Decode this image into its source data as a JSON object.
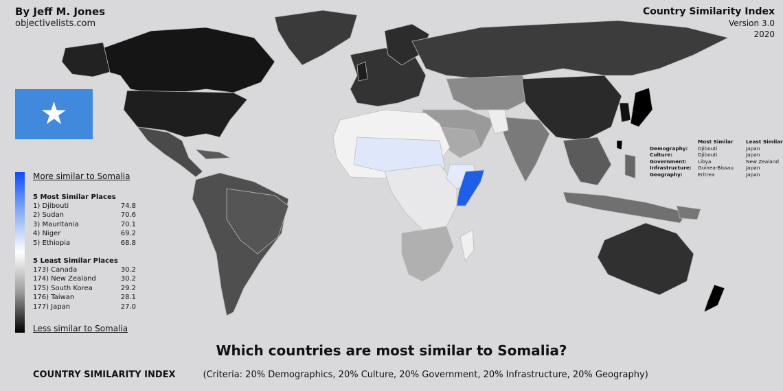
{
  "author": "By Jeff M. Jones",
  "website": "objectivelists.com",
  "index": {
    "title": "Country Similarity Index",
    "version": "Version 3.0",
    "year": "2020"
  },
  "legend": {
    "more_similar": "More similar to Somalia",
    "less_similar": "Less similar to Somalia",
    "top_colour": "#0a4cff",
    "bottom_colour": "#000000"
  },
  "most_similar": {
    "header": "5 Most Similar Places",
    "items": [
      {
        "rank": "1) Djibouti",
        "score": "74.8"
      },
      {
        "rank": "2) Sudan",
        "score": "70.6"
      },
      {
        "rank": "3) Mauritania",
        "score": "70.1"
      },
      {
        "rank": "4) Niger",
        "score": "69.2"
      },
      {
        "rank": "5) Ethiopia",
        "score": "68.8"
      }
    ]
  },
  "least_similar": {
    "header": "5 Least Similar Places",
    "items": [
      {
        "rank": "173) Canada",
        "score": "30.2"
      },
      {
        "rank": "174) New Zealand",
        "score": "30.2"
      },
      {
        "rank": "175) South Korea",
        "score": "29.2"
      },
      {
        "rank": "176) Taiwan",
        "score": "28.1"
      },
      {
        "rank": "177) Japan",
        "score": "27.0"
      }
    ]
  },
  "criteria_table": {
    "col_most": "Most Similar",
    "col_least": "Least Similar",
    "rows": [
      {
        "label": "Demography:",
        "most": "Djibouti",
        "least": "Japan"
      },
      {
        "label": "Culture:",
        "most": "Djibouti",
        "least": "Japan"
      },
      {
        "label": "Government:",
        "most": "Libya",
        "least": "New Zealand"
      },
      {
        "label": "Infrastructure:",
        "most": "Guinea-Bissau",
        "least": "Japan"
      },
      {
        "label": "Geography:",
        "most": "Eritrea",
        "least": "Japan"
      }
    ]
  },
  "question": "Which countries are most similar to Somalia?",
  "footer": {
    "label": "COUNTRY SIMILARITY INDEX",
    "criteria": "(Criteria: 20% Demographics, 20% Culture, 20% Government, 20% Infrastructure, 20% Geography)"
  },
  "colors": {
    "somalia": "#1f5fe8",
    "flag_blue": "#4189dd",
    "background": "#d9d9dc"
  }
}
